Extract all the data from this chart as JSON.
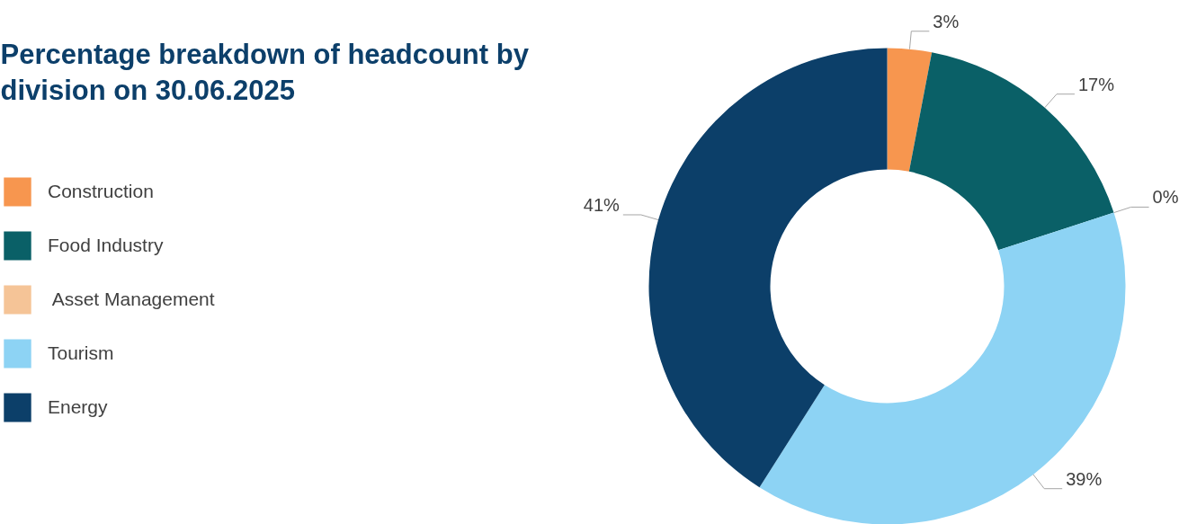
{
  "chart_data": {
    "type": "donut",
    "title": "Percentage breakdown of headcount by division on 30.06.2025",
    "categories": [
      "Construction",
      "Food Industry",
      " Asset Management",
      "Tourism",
      "Energy"
    ],
    "values": [
      3,
      17,
      0,
      39,
      41
    ],
    "colors": [
      "#f7964f",
      "#0a6067",
      "#f5c497",
      "#8dd3f4",
      "#0c3f69"
    ],
    "value_labels": [
      "3%",
      "17%",
      "0%",
      "39%",
      "41%"
    ],
    "legend": "left"
  }
}
